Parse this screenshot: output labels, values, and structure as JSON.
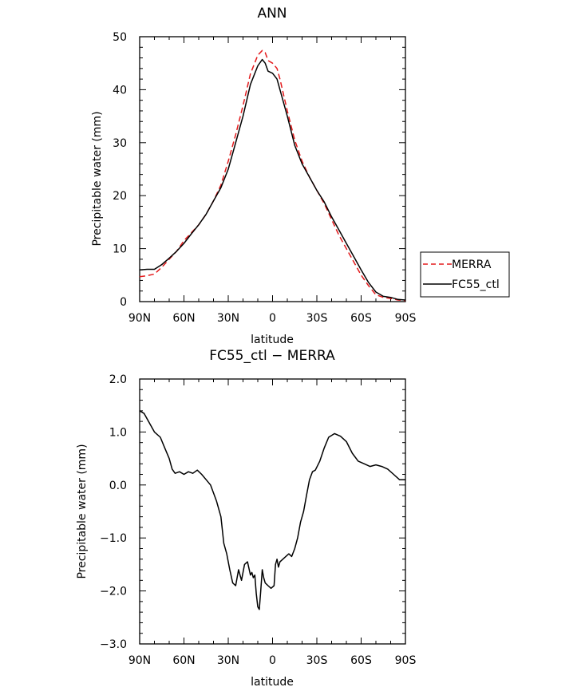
{
  "chart_data": [
    {
      "type": "line",
      "title": "ANN",
      "xlabel": "latitude",
      "ylabel": "Precipitable water (mm)",
      "xlim": [
        90,
        -90
      ],
      "ylim": [
        0,
        50
      ],
      "x_tick_labels": [
        "90N",
        "60N",
        "30N",
        "0",
        "30S",
        "60S",
        "90S"
      ],
      "y_tick_labels": [
        "0",
        "10",
        "20",
        "30",
        "40",
        "50"
      ],
      "legend_position": "right",
      "series": [
        {
          "name": "MERRA",
          "color": "#e41a1c",
          "dash": "dashed",
          "x": [
            90,
            85,
            80,
            75,
            70,
            65,
            60,
            55,
            50,
            45,
            40,
            35,
            30,
            25,
            20,
            15,
            10,
            7,
            5,
            3,
            0,
            -3,
            -5,
            -10,
            -15,
            -20,
            -25,
            -30,
            -35,
            -40,
            -45,
            -50,
            -55,
            -60,
            -65,
            -70,
            -75,
            -80,
            -85,
            -90
          ],
          "y": [
            4.7,
            4.9,
            5.2,
            6.5,
            8.0,
            9.5,
            11.5,
            13.0,
            14.5,
            16.5,
            19.0,
            22.0,
            26.5,
            31.5,
            37.0,
            43.0,
            46.5,
            47.4,
            47.0,
            45.5,
            45.0,
            44.0,
            42.0,
            36.0,
            30.5,
            26.5,
            23.5,
            21.0,
            18.5,
            15.5,
            12.5,
            10.0,
            7.5,
            5.0,
            3.0,
            1.3,
            0.8,
            0.6,
            0.3,
            0.2
          ]
        },
        {
          "name": "FC55_ctl",
          "color": "#000000",
          "dash": "solid",
          "x": [
            90,
            85,
            80,
            75,
            70,
            65,
            60,
            55,
            50,
            45,
            40,
            35,
            30,
            25,
            20,
            15,
            10,
            7,
            5,
            3,
            0,
            -3,
            -5,
            -10,
            -15,
            -20,
            -25,
            -30,
            -35,
            -40,
            -45,
            -50,
            -55,
            -60,
            -65,
            -70,
            -75,
            -80,
            -85,
            -90
          ],
          "y": [
            6.0,
            6.1,
            6.1,
            7.0,
            8.2,
            9.5,
            11.0,
            12.8,
            14.5,
            16.5,
            19.0,
            21.5,
            25.0,
            30.0,
            35.0,
            41.0,
            44.5,
            45.7,
            45.0,
            43.5,
            43.1,
            42.0,
            40.0,
            35.0,
            29.5,
            26.0,
            23.5,
            21.0,
            18.8,
            16.0,
            13.5,
            11.0,
            8.5,
            6.0,
            3.6,
            1.8,
            1.0,
            0.8,
            0.4,
            0.3
          ]
        }
      ]
    },
    {
      "type": "line",
      "title": "FC55_ctl − MERRA",
      "xlabel": "latitude",
      "ylabel": "Precipitable water (mm)",
      "xlim": [
        90,
        -90
      ],
      "ylim": [
        -3.0,
        2.0
      ],
      "x_tick_labels": [
        "90N",
        "60N",
        "30N",
        "0",
        "30S",
        "60S",
        "90S"
      ],
      "y_tick_labels": [
        "−3.0",
        "−2.0",
        "−1.0",
        "0.0",
        "1.0",
        "2.0"
      ],
      "series": [
        {
          "color": "#000000",
          "dash": "solid",
          "x": [
            90,
            87,
            84,
            80,
            76,
            73,
            70,
            68,
            66,
            63,
            60,
            57,
            54,
            51,
            48,
            45,
            42,
            38,
            35,
            33,
            31,
            29,
            27,
            25,
            23,
            21,
            19,
            17,
            15,
            14,
            13,
            12,
            11,
            10,
            9,
            8,
            7,
            6,
            5,
            3,
            1,
            -1,
            -2,
            -3,
            -4,
            -5,
            -7,
            -9,
            -11,
            -13,
            -15,
            -17,
            -19,
            -21,
            -23,
            -25,
            -27,
            -29,
            -32,
            -35,
            -38,
            -42,
            -46,
            -50,
            -54,
            -58,
            -62,
            -66,
            -70,
            -74,
            -78,
            -82,
            -86,
            -90
          ],
          "y": [
            1.4,
            1.35,
            1.2,
            1.0,
            0.9,
            0.7,
            0.5,
            0.3,
            0.22,
            0.25,
            0.2,
            0.25,
            0.22,
            0.28,
            0.2,
            0.1,
            0.0,
            -0.3,
            -0.6,
            -1.1,
            -1.3,
            -1.6,
            -1.85,
            -1.9,
            -1.6,
            -1.8,
            -1.5,
            -1.45,
            -1.7,
            -1.65,
            -1.75,
            -1.7,
            -2.05,
            -2.3,
            -2.35,
            -2.0,
            -1.6,
            -1.75,
            -1.85,
            -1.9,
            -1.95,
            -1.9,
            -1.5,
            -1.4,
            -1.55,
            -1.45,
            -1.4,
            -1.35,
            -1.3,
            -1.35,
            -1.2,
            -1.0,
            -0.7,
            -0.5,
            -0.2,
            0.1,
            0.25,
            0.28,
            0.45,
            0.7,
            0.9,
            0.97,
            0.92,
            0.82,
            0.6,
            0.45,
            0.4,
            0.35,
            0.38,
            0.35,
            0.3,
            0.2,
            0.1,
            0.1
          ]
        }
      ]
    }
  ]
}
